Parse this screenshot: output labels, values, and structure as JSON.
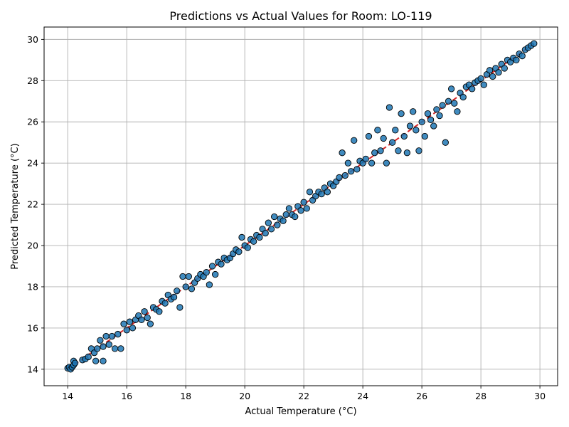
{
  "chart_data": {
    "type": "scatter",
    "title": "Predictions vs Actual Values for Room: LO-119",
    "xlabel": "Actual Temperature (°C)",
    "ylabel": "Predicted Temperature (°C)",
    "xlim": [
      13.2,
      30.6
    ],
    "ylim": [
      13.2,
      30.6
    ],
    "xticks": [
      14,
      16,
      18,
      20,
      22,
      24,
      26,
      28,
      30
    ],
    "yticks": [
      14,
      16,
      18,
      20,
      22,
      24,
      26,
      28,
      30
    ],
    "grid": true,
    "point_color": "#1f77b4",
    "point_edge_color": "#000000",
    "reference_line": {
      "x": [
        14,
        29.8
      ],
      "y": [
        14,
        29.8
      ],
      "color": "#d62728",
      "style": "dashed"
    },
    "series": [
      {
        "points": [
          [
            14.0,
            14.05
          ],
          [
            14.05,
            14.1
          ],
          [
            14.1,
            14.0
          ],
          [
            14.15,
            14.1
          ],
          [
            14.2,
            14.4
          ],
          [
            14.2,
            14.2
          ],
          [
            14.25,
            14.3
          ],
          [
            14.5,
            14.45
          ],
          [
            14.6,
            14.5
          ],
          [
            14.7,
            14.6
          ],
          [
            14.8,
            15.0
          ],
          [
            14.9,
            14.8
          ],
          [
            14.95,
            14.4
          ],
          [
            15.0,
            15.0
          ],
          [
            15.1,
            15.4
          ],
          [
            15.2,
            15.1
          ],
          [
            15.2,
            14.4
          ],
          [
            15.3,
            15.6
          ],
          [
            15.4,
            15.2
          ],
          [
            15.5,
            15.6
          ],
          [
            15.6,
            15.0
          ],
          [
            15.7,
            15.7
          ],
          [
            15.8,
            15.0
          ],
          [
            15.9,
            16.2
          ],
          [
            16.0,
            15.9
          ],
          [
            16.1,
            16.3
          ],
          [
            16.2,
            16.0
          ],
          [
            16.3,
            16.4
          ],
          [
            16.4,
            16.6
          ],
          [
            16.5,
            16.4
          ],
          [
            16.6,
            16.8
          ],
          [
            16.7,
            16.5
          ],
          [
            16.8,
            16.2
          ],
          [
            16.9,
            17.0
          ],
          [
            17.0,
            16.9
          ],
          [
            17.1,
            16.8
          ],
          [
            17.2,
            17.3
          ],
          [
            17.3,
            17.2
          ],
          [
            17.4,
            17.6
          ],
          [
            17.5,
            17.4
          ],
          [
            17.6,
            17.5
          ],
          [
            17.7,
            17.8
          ],
          [
            17.8,
            17.0
          ],
          [
            17.9,
            18.5
          ],
          [
            18.0,
            18.0
          ],
          [
            18.1,
            18.5
          ],
          [
            18.2,
            17.9
          ],
          [
            18.3,
            18.2
          ],
          [
            18.4,
            18.4
          ],
          [
            18.5,
            18.6
          ],
          [
            18.6,
            18.5
          ],
          [
            18.7,
            18.7
          ],
          [
            18.8,
            18.1
          ],
          [
            18.9,
            19.0
          ],
          [
            19.0,
            18.6
          ],
          [
            19.1,
            19.2
          ],
          [
            19.2,
            19.1
          ],
          [
            19.3,
            19.4
          ],
          [
            19.4,
            19.3
          ],
          [
            19.5,
            19.4
          ],
          [
            19.6,
            19.6
          ],
          [
            19.7,
            19.8
          ],
          [
            19.8,
            19.7
          ],
          [
            19.9,
            20.4
          ],
          [
            20.0,
            20.0
          ],
          [
            20.1,
            19.9
          ],
          [
            20.2,
            20.3
          ],
          [
            20.3,
            20.2
          ],
          [
            20.4,
            20.5
          ],
          [
            20.5,
            20.4
          ],
          [
            20.6,
            20.8
          ],
          [
            20.7,
            20.6
          ],
          [
            20.8,
            21.1
          ],
          [
            20.9,
            20.8
          ],
          [
            21.0,
            21.4
          ],
          [
            21.1,
            21.0
          ],
          [
            21.2,
            21.3
          ],
          [
            21.3,
            21.2
          ],
          [
            21.4,
            21.5
          ],
          [
            21.5,
            21.8
          ],
          [
            21.6,
            21.5
          ],
          [
            21.7,
            21.4
          ],
          [
            21.8,
            21.9
          ],
          [
            21.9,
            21.7
          ],
          [
            22.0,
            22.1
          ],
          [
            22.1,
            21.8
          ],
          [
            22.2,
            22.6
          ],
          [
            22.3,
            22.2
          ],
          [
            22.4,
            22.4
          ],
          [
            22.5,
            22.6
          ],
          [
            22.6,
            22.5
          ],
          [
            22.7,
            22.8
          ],
          [
            22.8,
            22.6
          ],
          [
            22.9,
            23.0
          ],
          [
            23.0,
            22.9
          ],
          [
            23.1,
            23.1
          ],
          [
            23.2,
            23.3
          ],
          [
            23.3,
            24.5
          ],
          [
            23.4,
            23.4
          ],
          [
            23.5,
            24.0
          ],
          [
            23.6,
            23.6
          ],
          [
            23.7,
            25.1
          ],
          [
            23.8,
            23.7
          ],
          [
            23.9,
            24.1
          ],
          [
            24.0,
            24.0
          ],
          [
            24.1,
            24.2
          ],
          [
            24.2,
            25.3
          ],
          [
            24.3,
            24.0
          ],
          [
            24.4,
            24.5
          ],
          [
            24.5,
            25.6
          ],
          [
            24.6,
            24.6
          ],
          [
            24.7,
            25.2
          ],
          [
            24.8,
            24.0
          ],
          [
            24.9,
            26.7
          ],
          [
            25.0,
            25.0
          ],
          [
            25.1,
            25.6
          ],
          [
            25.2,
            24.6
          ],
          [
            25.3,
            26.4
          ],
          [
            25.4,
            25.3
          ],
          [
            25.5,
            24.5
          ],
          [
            25.6,
            25.8
          ],
          [
            25.7,
            26.5
          ],
          [
            25.8,
            25.6
          ],
          [
            25.9,
            24.6
          ],
          [
            26.0,
            26.0
          ],
          [
            26.1,
            25.3
          ],
          [
            26.2,
            26.4
          ],
          [
            26.3,
            26.1
          ],
          [
            26.4,
            25.8
          ],
          [
            26.5,
            26.6
          ],
          [
            26.6,
            26.3
          ],
          [
            26.7,
            26.8
          ],
          [
            26.8,
            25.0
          ],
          [
            26.9,
            27.0
          ],
          [
            27.0,
            27.6
          ],
          [
            27.1,
            26.9
          ],
          [
            27.2,
            26.5
          ],
          [
            27.3,
            27.4
          ],
          [
            27.4,
            27.2
          ],
          [
            27.5,
            27.7
          ],
          [
            27.6,
            27.8
          ],
          [
            27.7,
            27.6
          ],
          [
            27.8,
            27.9
          ],
          [
            27.9,
            28.0
          ],
          [
            28.0,
            28.1
          ],
          [
            28.1,
            27.8
          ],
          [
            28.2,
            28.3
          ],
          [
            28.3,
            28.5
          ],
          [
            28.4,
            28.2
          ],
          [
            28.5,
            28.6
          ],
          [
            28.6,
            28.4
          ],
          [
            28.7,
            28.8
          ],
          [
            28.8,
            28.6
          ],
          [
            28.9,
            29.0
          ],
          [
            29.0,
            28.9
          ],
          [
            29.1,
            29.1
          ],
          [
            29.2,
            29.0
          ],
          [
            29.3,
            29.3
          ],
          [
            29.4,
            29.2
          ],
          [
            29.5,
            29.5
          ],
          [
            29.6,
            29.6
          ],
          [
            29.7,
            29.7
          ],
          [
            29.8,
            29.8
          ]
        ]
      }
    ]
  }
}
